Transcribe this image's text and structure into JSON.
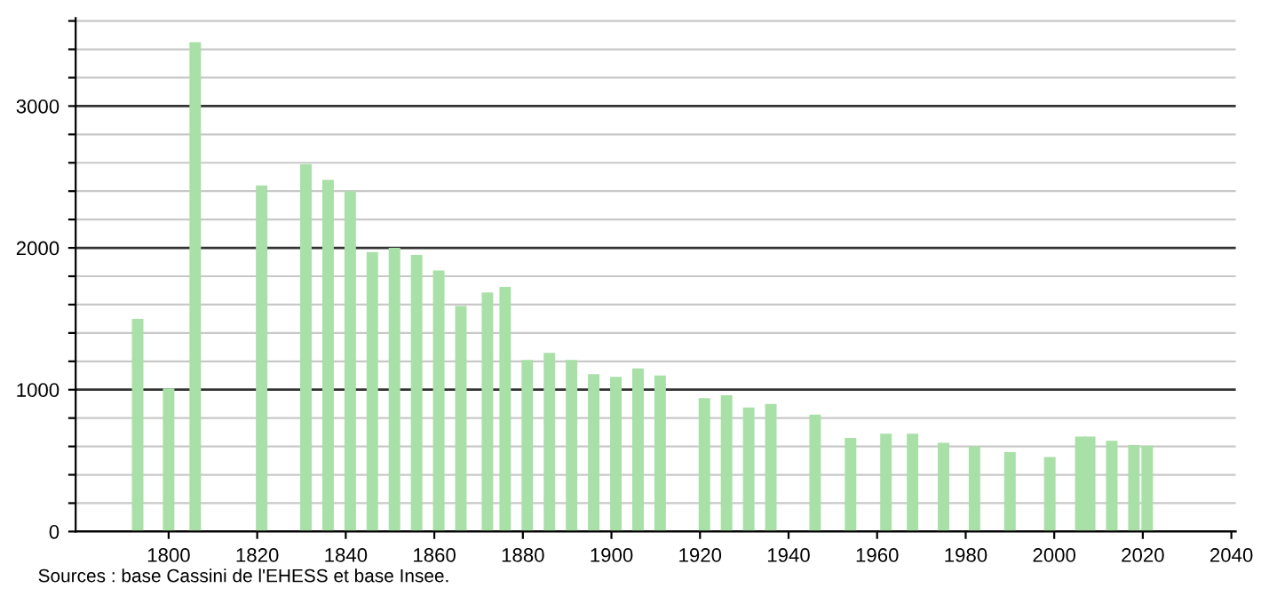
{
  "chart_data": {
    "type": "bar",
    "x": [
      1793,
      1800,
      1806,
      1821,
      1831,
      1836,
      1841,
      1846,
      1851,
      1856,
      1861,
      1866,
      1872,
      1876,
      1881,
      1886,
      1891,
      1896,
      1901,
      1906,
      1911,
      1921,
      1926,
      1931,
      1936,
      1946,
      1954,
      1962,
      1968,
      1975,
      1982,
      1990,
      1999,
      2006,
      2008,
      2013,
      2018,
      2021
    ],
    "values": [
      1500,
      1010,
      3450,
      2440,
      2590,
      2480,
      2400,
      1970,
      2000,
      1950,
      1840,
      1590,
      1685,
      1725,
      1210,
      1260,
      1210,
      1110,
      1090,
      1150,
      1100,
      940,
      960,
      875,
      900,
      825,
      660,
      690,
      690,
      625,
      600,
      560,
      525,
      670,
      670,
      640,
      610,
      605
    ],
    "color": "#a8e0a8",
    "xlim": [
      1779,
      2041
    ],
    "xticks": [
      1800,
      1820,
      1840,
      1860,
      1880,
      1900,
      1920,
      1940,
      1960,
      1980,
      2000,
      2020,
      2040
    ],
    "ylim": [
      0,
      3620
    ],
    "yticks": [
      0,
      {
        "value": 200,
        "label": null
      },
      {
        "value": 400,
        "label": null
      },
      {
        "value": 600,
        "label": null
      },
      {
        "value": 800,
        "label": null
      },
      1000,
      {
        "value": 1200,
        "label": null
      },
      {
        "value": 1400,
        "label": null
      },
      {
        "value": 1600,
        "label": null
      },
      {
        "value": 1800,
        "label": null
      },
      2000,
      {
        "value": 2200,
        "label": null
      },
      {
        "value": 2400,
        "label": null
      },
      {
        "value": 2600,
        "label": null
      },
      {
        "value": 2800,
        "label": null
      },
      3000,
      {
        "value": 3200,
        "label": null
      },
      {
        "value": 3400,
        "label": null
      },
      {
        "value": 3600,
        "label": null
      }
    ],
    "grid": "y",
    "annotations": [
      "Sources : base Cassini de l'EHESS et base Insee."
    ]
  }
}
